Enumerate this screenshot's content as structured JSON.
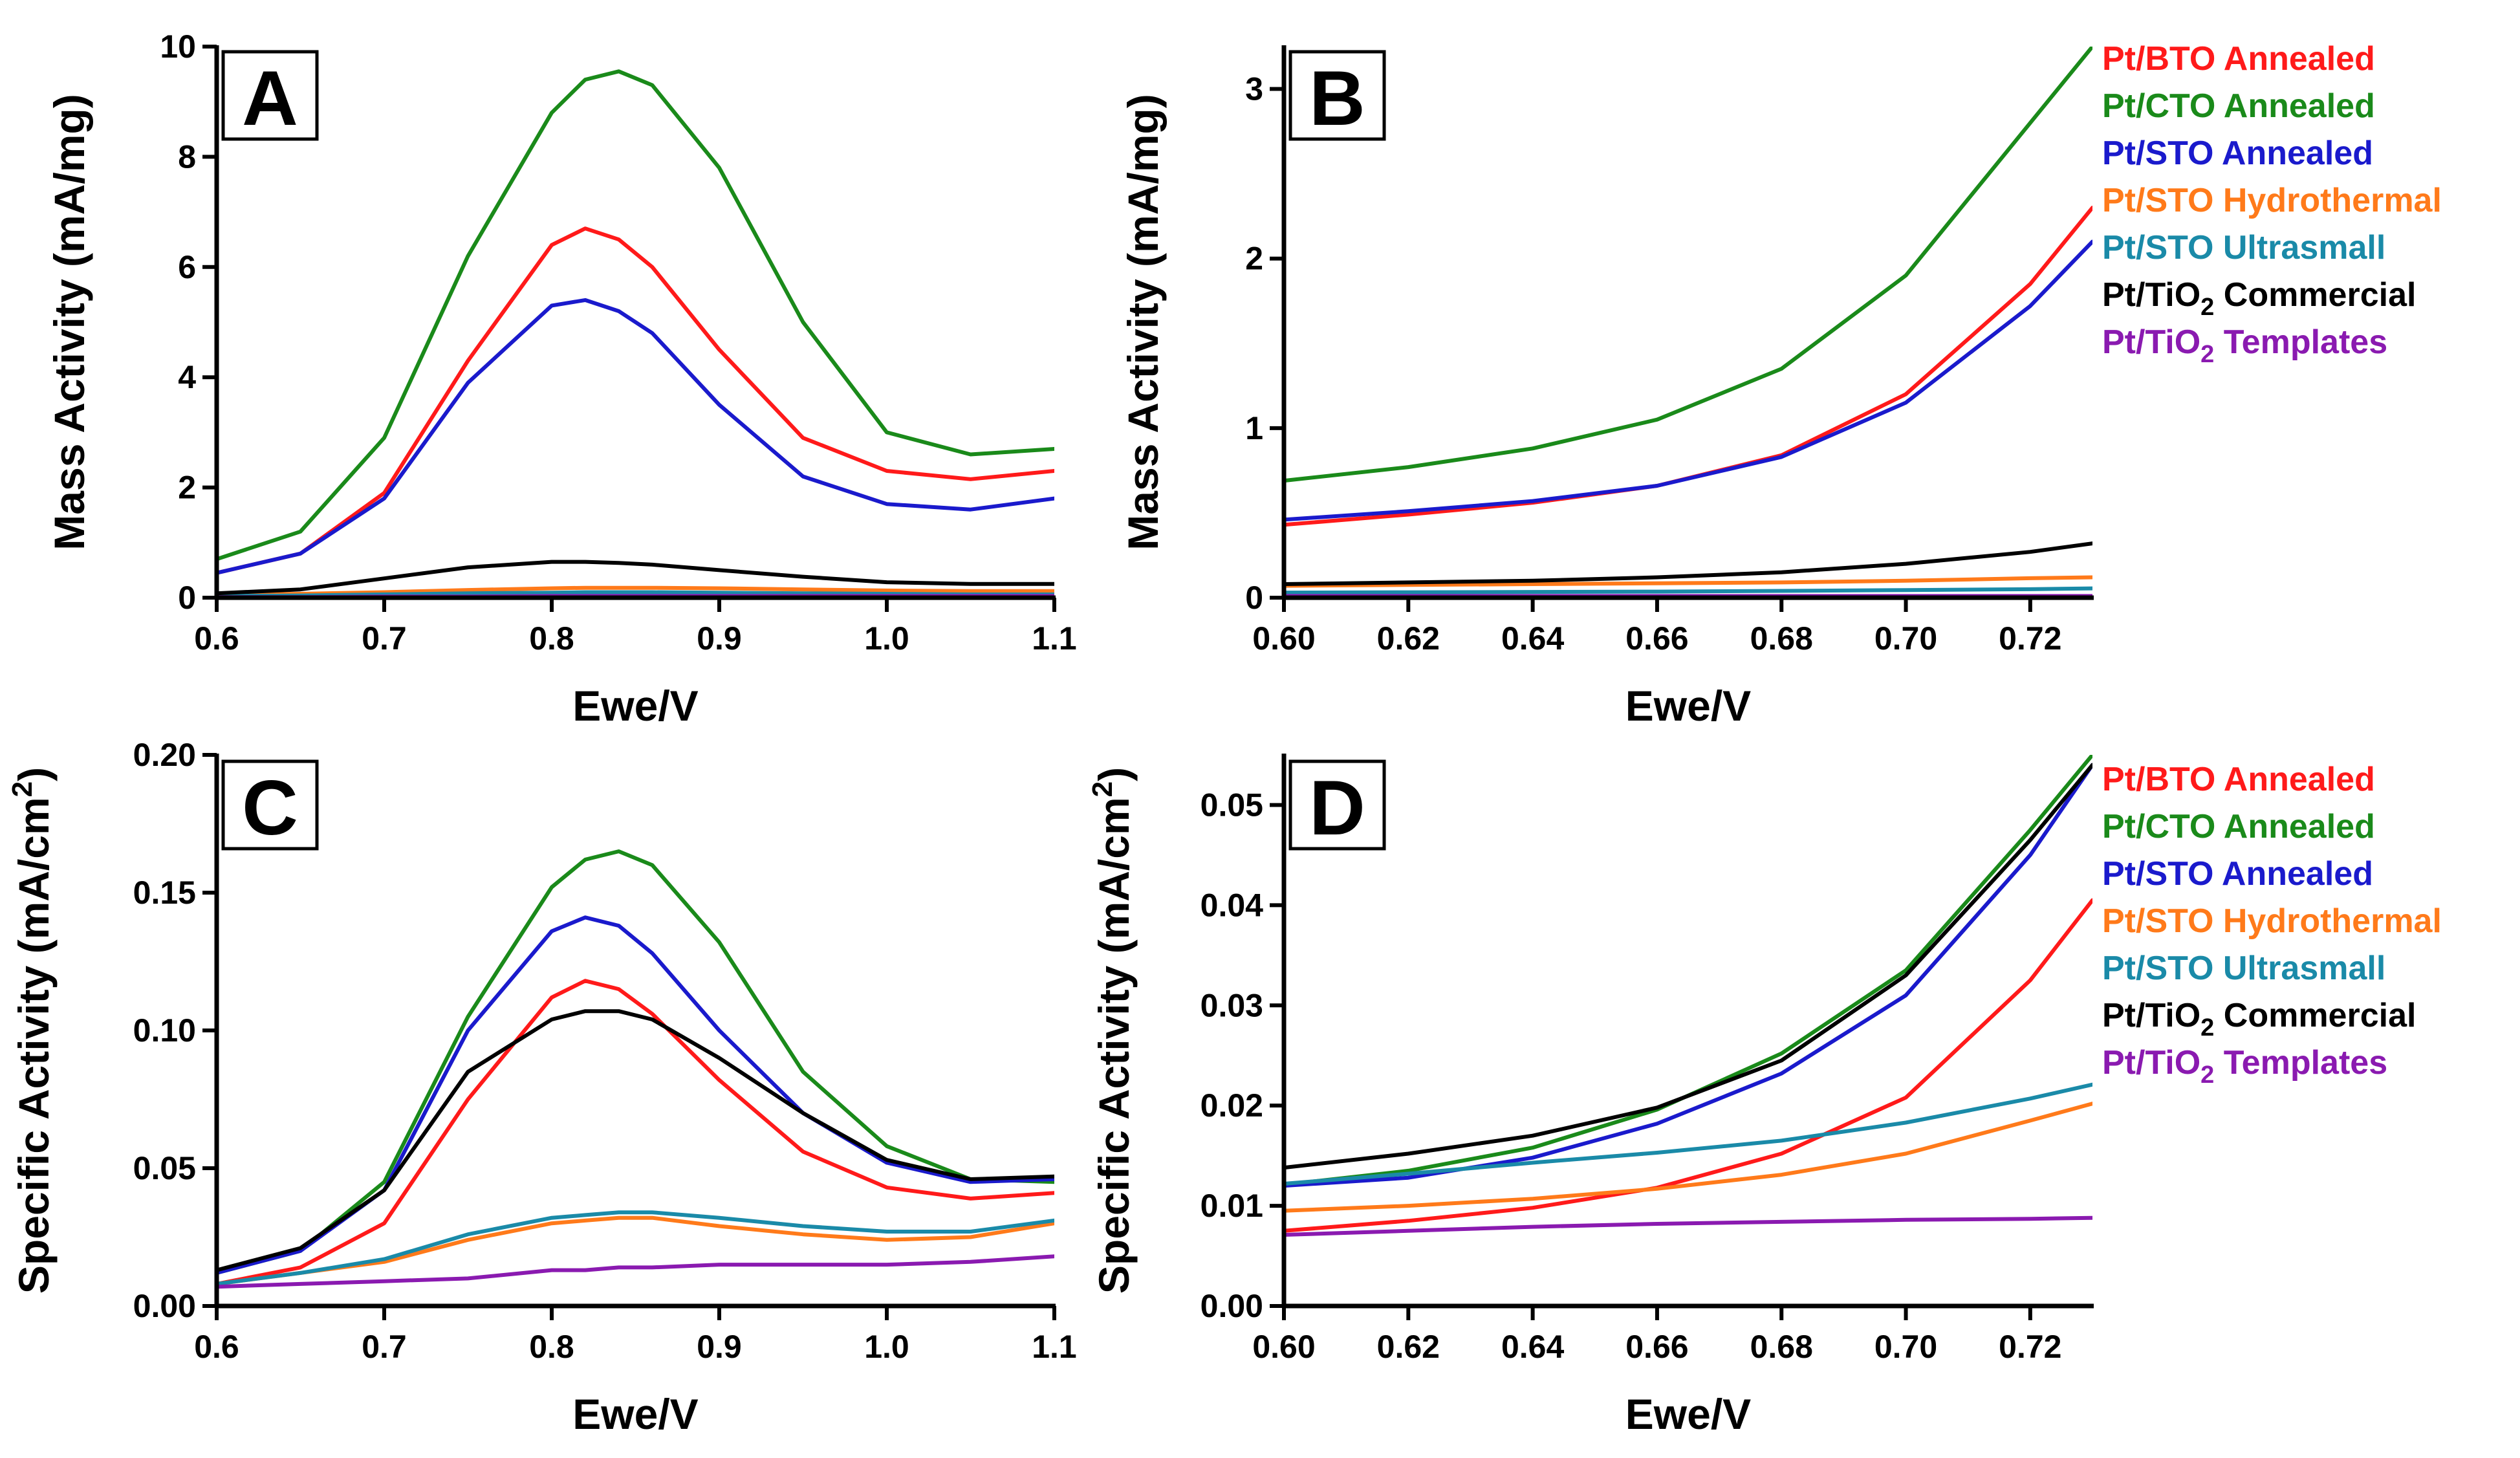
{
  "colors": {
    "Pt/BTO Annealed": "#ff1a1a",
    "Pt/CTO Annealed": "#1a8a1a",
    "Pt/STO Annealed": "#1a1acc",
    "Pt/STO Hydrothermal": "#ff7a1a",
    "Pt/STO Ultrasmall": "#1a8aa8",
    "Pt/TiO2 Commercial": "#000000",
    "Pt/TiO2 Templates": "#8a1ab0"
  },
  "chart_data": [
    {
      "panel": "A",
      "type": "line",
      "xlabel": "Ewe/V",
      "ylabel": "Mass Activity (mA/mg)",
      "xlim": [
        0.6,
        1.1
      ],
      "ylim": [
        0,
        10
      ],
      "xticks": [
        "0.6",
        "0.7",
        "0.8",
        "0.9",
        "1.0",
        "1.1"
      ],
      "yticks": [
        "0",
        "2",
        "4",
        "6",
        "8",
        "10"
      ],
      "x": [
        0.6,
        0.65,
        0.7,
        0.75,
        0.8,
        0.82,
        0.84,
        0.86,
        0.9,
        0.95,
        1.0,
        1.05,
        1.1
      ],
      "series": [
        {
          "name": "Pt/BTO Annealed",
          "values": [
            0.45,
            0.8,
            1.9,
            4.3,
            6.4,
            6.7,
            6.5,
            6.0,
            4.5,
            2.9,
            2.3,
            2.15,
            2.3
          ]
        },
        {
          "name": "Pt/CTO Annealed",
          "values": [
            0.7,
            1.2,
            2.9,
            6.2,
            8.8,
            9.4,
            9.55,
            9.3,
            7.8,
            5.0,
            3.0,
            2.6,
            2.7
          ]
        },
        {
          "name": "Pt/STO Annealed",
          "values": [
            0.45,
            0.8,
            1.8,
            3.9,
            5.3,
            5.4,
            5.2,
            4.8,
            3.5,
            2.2,
            1.7,
            1.6,
            1.8
          ]
        },
        {
          "name": "Pt/STO Hydrothermal",
          "values": [
            0.05,
            0.07,
            0.1,
            0.14,
            0.17,
            0.18,
            0.18,
            0.18,
            0.17,
            0.15,
            0.13,
            0.12,
            0.12
          ]
        },
        {
          "name": "Pt/STO Ultrasmall",
          "values": [
            0.03,
            0.04,
            0.06,
            0.08,
            0.09,
            0.1,
            0.1,
            0.1,
            0.09,
            0.08,
            0.07,
            0.06,
            0.06
          ]
        },
        {
          "name": "Pt/TiO2 Commercial",
          "values": [
            0.08,
            0.15,
            0.35,
            0.55,
            0.65,
            0.65,
            0.63,
            0.6,
            0.5,
            0.38,
            0.28,
            0.25,
            0.25
          ]
        },
        {
          "name": "Pt/TiO2 Templates",
          "values": [
            0.01,
            0.01,
            0.02,
            0.02,
            0.03,
            0.03,
            0.03,
            0.03,
            0.03,
            0.03,
            0.03,
            0.03,
            0.03
          ]
        }
      ]
    },
    {
      "panel": "B",
      "type": "line",
      "xlabel": "Ewe/V",
      "ylabel": "Mass Activity (mA/mg)",
      "xlim": [
        0.6,
        0.73
      ],
      "ylim": [
        0,
        3.25
      ],
      "xticks": [
        "0.60",
        "0.62",
        "0.64",
        "0.66",
        "0.68",
        "0.70",
        "0.72"
      ],
      "yticks": [
        "0",
        "1",
        "2",
        "3"
      ],
      "x": [
        0.6,
        0.62,
        0.64,
        0.66,
        0.68,
        0.7,
        0.72,
        0.73
      ],
      "series": [
        {
          "name": "Pt/BTO Annealed",
          "values": [
            0.43,
            0.49,
            0.56,
            0.66,
            0.84,
            1.2,
            1.85,
            2.3
          ]
        },
        {
          "name": "Pt/CTO Annealed",
          "values": [
            0.69,
            0.77,
            0.88,
            1.05,
            1.35,
            1.9,
            2.8,
            3.25
          ]
        },
        {
          "name": "Pt/STO Annealed",
          "values": [
            0.46,
            0.51,
            0.57,
            0.66,
            0.83,
            1.15,
            1.72,
            2.1
          ]
        },
        {
          "name": "Pt/STO Hydrothermal",
          "values": [
            0.07,
            0.075,
            0.08,
            0.085,
            0.09,
            0.1,
            0.115,
            0.12
          ]
        },
        {
          "name": "Pt/STO Ultrasmall",
          "values": [
            0.03,
            0.032,
            0.034,
            0.036,
            0.04,
            0.045,
            0.05,
            0.055
          ]
        },
        {
          "name": "Pt/TiO2 Commercial",
          "values": [
            0.08,
            0.09,
            0.1,
            0.12,
            0.15,
            0.2,
            0.27,
            0.32
          ]
        },
        {
          "name": "Pt/TiO2 Templates",
          "values": [
            0.01,
            0.01,
            0.01,
            0.01,
            0.01,
            0.01,
            0.01,
            0.01
          ]
        }
      ]
    },
    {
      "panel": "C",
      "type": "line",
      "xlabel": "Ewe/V",
      "ylabel": "Specific Activity (mA/cm2)",
      "xlim": [
        0.6,
        1.1
      ],
      "ylim": [
        0,
        0.2
      ],
      "xticks": [
        "0.6",
        "0.7",
        "0.8",
        "0.9",
        "1.0",
        "1.1"
      ],
      "yticks": [
        "0.00",
        "0.05",
        "0.10",
        "0.15",
        "0.20"
      ],
      "x": [
        0.6,
        0.65,
        0.7,
        0.75,
        0.8,
        0.82,
        0.84,
        0.86,
        0.9,
        0.95,
        1.0,
        1.05,
        1.1
      ],
      "series": [
        {
          "name": "Pt/BTO Annealed",
          "values": [
            0.008,
            0.014,
            0.03,
            0.075,
            0.112,
            0.118,
            0.115,
            0.106,
            0.082,
            0.056,
            0.043,
            0.039,
            0.041
          ]
        },
        {
          "name": "Pt/CTO Annealed",
          "values": [
            0.012,
            0.02,
            0.045,
            0.105,
            0.152,
            0.162,
            0.165,
            0.16,
            0.132,
            0.085,
            0.058,
            0.046,
            0.045
          ]
        },
        {
          "name": "Pt/STO Annealed",
          "values": [
            0.012,
            0.02,
            0.042,
            0.1,
            0.136,
            0.141,
            0.138,
            0.128,
            0.1,
            0.07,
            0.052,
            0.045,
            0.046
          ]
        },
        {
          "name": "Pt/STO Hydrothermal",
          "values": [
            0.008,
            0.012,
            0.016,
            0.024,
            0.03,
            0.031,
            0.032,
            0.032,
            0.029,
            0.026,
            0.024,
            0.025,
            0.03
          ]
        },
        {
          "name": "Pt/STO Ultrasmall",
          "values": [
            0.008,
            0.012,
            0.017,
            0.026,
            0.032,
            0.033,
            0.034,
            0.034,
            0.032,
            0.029,
            0.027,
            0.027,
            0.031
          ]
        },
        {
          "name": "Pt/TiO2 Commercial",
          "values": [
            0.013,
            0.021,
            0.042,
            0.085,
            0.104,
            0.107,
            0.107,
            0.104,
            0.09,
            0.07,
            0.053,
            0.046,
            0.047
          ]
        },
        {
          "name": "Pt/TiO2 Templates",
          "values": [
            0.007,
            0.008,
            0.009,
            0.01,
            0.013,
            0.013,
            0.014,
            0.014,
            0.015,
            0.015,
            0.015,
            0.016,
            0.018
          ]
        }
      ]
    },
    {
      "panel": "D",
      "type": "line",
      "xlabel": "Ewe/V",
      "ylabel": "Specific Activity (mA/cm2)",
      "xlim": [
        0.6,
        0.73
      ],
      "ylim": [
        0,
        0.055
      ],
      "xticks": [
        "0.60",
        "0.62",
        "0.64",
        "0.66",
        "0.68",
        "0.70",
        "0.72"
      ],
      "yticks": [
        "0.00",
        "0.01",
        "0.02",
        "0.03",
        "0.04",
        "0.05"
      ],
      "x": [
        0.6,
        0.62,
        0.64,
        0.66,
        0.68,
        0.7,
        0.72,
        0.73
      ],
      "series": [
        {
          "name": "Pt/BTO Annealed",
          "values": [
            0.0075,
            0.0085,
            0.0098,
            0.0118,
            0.0152,
            0.0208,
            0.0325,
            0.0405
          ]
        },
        {
          "name": "Pt/CTO Annealed",
          "values": [
            0.0121,
            0.0135,
            0.0158,
            0.0196,
            0.0252,
            0.0335,
            0.0475,
            0.055
          ]
        },
        {
          "name": "Pt/STO Annealed",
          "values": [
            0.012,
            0.0128,
            0.0148,
            0.0182,
            0.0232,
            0.031,
            0.045,
            0.054
          ]
        },
        {
          "name": "Pt/STO Hydrothermal",
          "values": [
            0.0095,
            0.01,
            0.0107,
            0.0117,
            0.0131,
            0.0152,
            0.0185,
            0.0202
          ]
        },
        {
          "name": "Pt/STO Ultrasmall",
          "values": [
            0.0122,
            0.0132,
            0.0143,
            0.0153,
            0.0165,
            0.0183,
            0.0207,
            0.0221
          ]
        },
        {
          "name": "Pt/TiO2 Commercial",
          "values": [
            0.0138,
            0.0152,
            0.017,
            0.0198,
            0.0245,
            0.033,
            0.0465,
            0.054
          ]
        },
        {
          "name": "Pt/TiO2 Templates",
          "values": [
            0.0071,
            0.0075,
            0.0079,
            0.0082,
            0.0084,
            0.0086,
            0.0087,
            0.0088
          ]
        }
      ]
    }
  ],
  "legends": [
    {
      "items": [
        {
          "name": "Pt/BTO Annealed",
          "prefix": "Pt/BTO Annealed",
          "sub": "",
          "suffix": ""
        },
        {
          "name": "Pt/CTO Annealed",
          "prefix": "Pt/CTO Annealed",
          "sub": "",
          "suffix": ""
        },
        {
          "name": "Pt/STO Annealed",
          "prefix": "Pt/STO Annealed",
          "sub": "",
          "suffix": ""
        },
        {
          "name": "Pt/STO Hydrothermal",
          "prefix": "Pt/STO Hydrothermal",
          "sub": "",
          "suffix": ""
        },
        {
          "name": "Pt/STO Ultrasmall",
          "prefix": "Pt/STO Ultrasmall",
          "sub": "",
          "suffix": ""
        },
        {
          "name": "Pt/TiO2 Commercial",
          "prefix": "Pt/TiO",
          "sub": "2",
          "suffix": " Commercial"
        },
        {
          "name": "Pt/TiO2 Templates",
          "prefix": "Pt/TiO",
          "sub": "2",
          "suffix": " Templates"
        }
      ]
    },
    {
      "items": [
        {
          "name": "Pt/BTO Annealed",
          "prefix": "Pt/BTO Annealed",
          "sub": "",
          "suffix": ""
        },
        {
          "name": "Pt/CTO Annealed",
          "prefix": "Pt/CTO Annealed",
          "sub": "",
          "suffix": ""
        },
        {
          "name": "Pt/STO Annealed",
          "prefix": "Pt/STO Annealed",
          "sub": "",
          "suffix": ""
        },
        {
          "name": "Pt/STO Hydrothermal",
          "prefix": "Pt/STO Hydrothermal",
          "sub": "",
          "suffix": ""
        },
        {
          "name": "Pt/STO Ultrasmall",
          "prefix": "Pt/STO Ultrasmall",
          "sub": "",
          "suffix": ""
        },
        {
          "name": "Pt/TiO2 Commercial",
          "prefix": "Pt/TiO",
          "sub": "2",
          "suffix": " Commercial"
        },
        {
          "name": "Pt/TiO2 Templates",
          "prefix": "Pt/TiO",
          "sub": "2",
          "suffix": " Templates"
        }
      ]
    }
  ],
  "ylabel_parts": {
    "mass": {
      "prefix": "Mass Activity (mA/mg)",
      "sup": "",
      "suffix": ""
    },
    "specific": {
      "prefix": "Specific Activity (mA/cm",
      "sup": "2",
      "suffix": ")"
    }
  }
}
